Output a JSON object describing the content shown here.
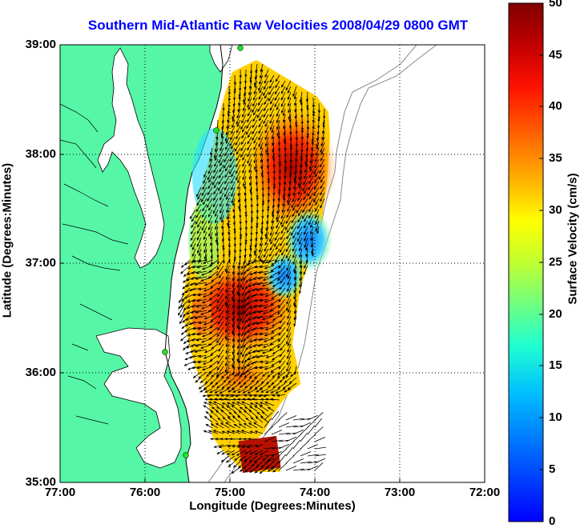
{
  "title": "Southern Mid-Atlantic Raw Velocities 2008/04/29 0800 GMT",
  "xaxis": {
    "label": "Longitude (Degrees:Minutes)",
    "ticks": [
      "77:00",
      "76:00",
      "75:00",
      "74:00",
      "73:00",
      "72:00"
    ]
  },
  "yaxis": {
    "label": "Latitude (Degrees:Minutes)",
    "ticks": [
      "39:00",
      "38:00",
      "37:00",
      "36:00",
      "35:00"
    ]
  },
  "colorbar": {
    "label": "Surface Velocity (cm/s)",
    "ticks": [
      "50",
      "45",
      "40",
      "35",
      "30",
      "25",
      "20",
      "15",
      "10",
      "5",
      "0"
    ],
    "min": 0,
    "max": 50,
    "colormap": "jet"
  },
  "map": {
    "lon_range": [
      -77,
      -72
    ],
    "lat_range": [
      35,
      39
    ],
    "land_color": "#55f7a7",
    "grid": "dotted",
    "station_marker_color": "#22dd22"
  }
}
